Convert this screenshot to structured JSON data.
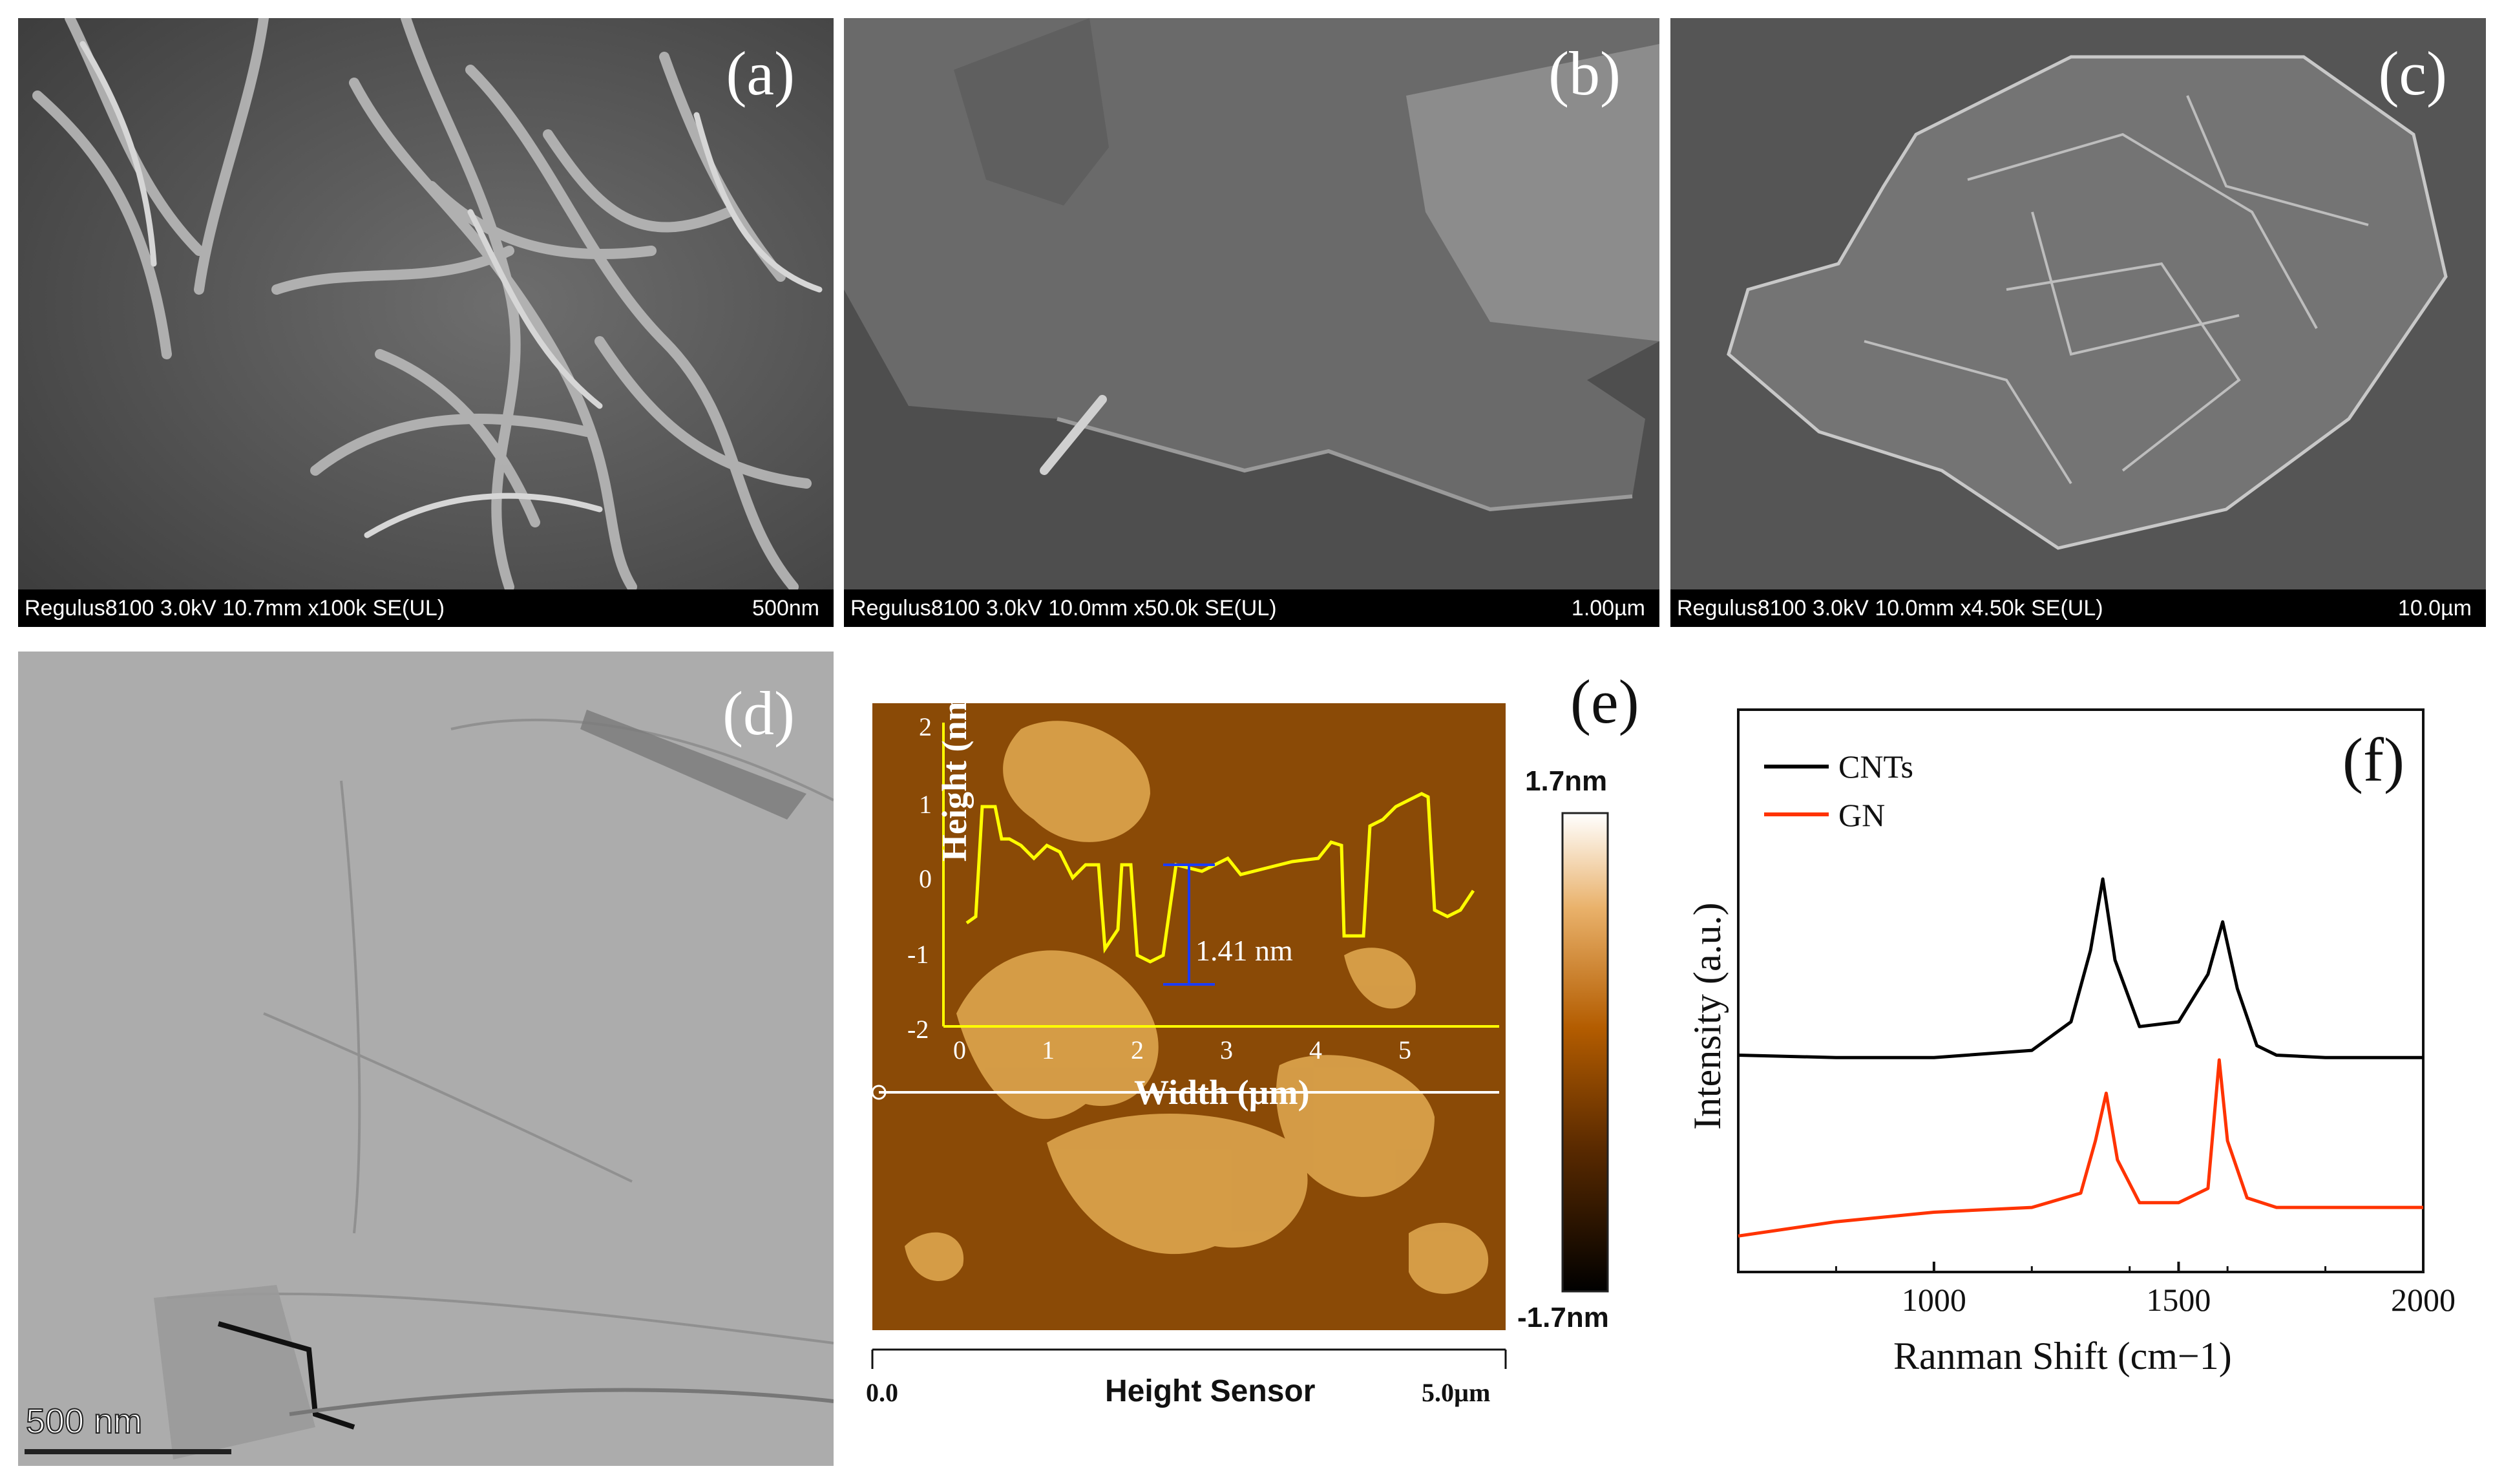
{
  "panels": {
    "a": {
      "label": "(a)",
      "info": "Regulus8100 3.0kV 10.7mm x100k SE(UL)",
      "scale": "500nm"
    },
    "b": {
      "label": "(b)",
      "info": "Regulus8100 3.0kV 10.0mm x50.0k SE(UL)",
      "scale": "1.00µm"
    },
    "c": {
      "label": "(c)",
      "info": "Regulus8100 3.0kV 10.0mm x4.50k SE(UL)",
      "scale": "10.0µm"
    },
    "d": {
      "label": "(d)",
      "scale": "500 nm"
    },
    "e": {
      "label": "(e)",
      "colorbar_max": "1.7nm",
      "colorbar_min": "-1.7nm",
      "axis_start": "0.0",
      "axis_end": "5.0µm",
      "axis_title": "Height Sensor",
      "inset": {
        "xlabel": "Width (µm)",
        "ylabel": "Height (nm)",
        "annotation": "1.41 nm",
        "x_ticks": [
          "0",
          "1",
          "2",
          "3",
          "4",
          "5"
        ],
        "y_ticks": [
          "2",
          "1",
          "0",
          "-1",
          "-2"
        ]
      }
    },
    "f": {
      "label": "(f)"
    }
  },
  "chart_data": {
    "type": "line",
    "title": "",
    "xlabel": "Ranman Shift (cm−1)",
    "ylabel": "Intensity (a.u.)",
    "xlim": [
      600,
      2000
    ],
    "x_ticks": [
      "1000",
      "1500",
      "2000"
    ],
    "legend_position": "top-left",
    "series": [
      {
        "name": "CNTs",
        "color": "#000000",
        "x": [
          600,
          800,
          1000,
          1200,
          1280,
          1320,
          1345,
          1370,
          1420,
          1500,
          1560,
          1590,
          1620,
          1660,
          1700,
          1800,
          2000
        ],
        "y": [
          0.38,
          0.375,
          0.375,
          0.39,
          0.45,
          0.6,
          0.75,
          0.58,
          0.44,
          0.45,
          0.55,
          0.66,
          0.52,
          0.4,
          0.38,
          0.375,
          0.375
        ]
      },
      {
        "name": "GN",
        "color": "#ff3300",
        "x": [
          600,
          800,
          1000,
          1200,
          1300,
          1330,
          1352,
          1375,
          1420,
          1500,
          1560,
          1583,
          1600,
          1640,
          1700,
          1800,
          2000
        ],
        "y": [
          0.0,
          0.03,
          0.05,
          0.06,
          0.09,
          0.2,
          0.3,
          0.16,
          0.07,
          0.07,
          0.1,
          0.37,
          0.2,
          0.08,
          0.06,
          0.06,
          0.06
        ]
      }
    ]
  }
}
